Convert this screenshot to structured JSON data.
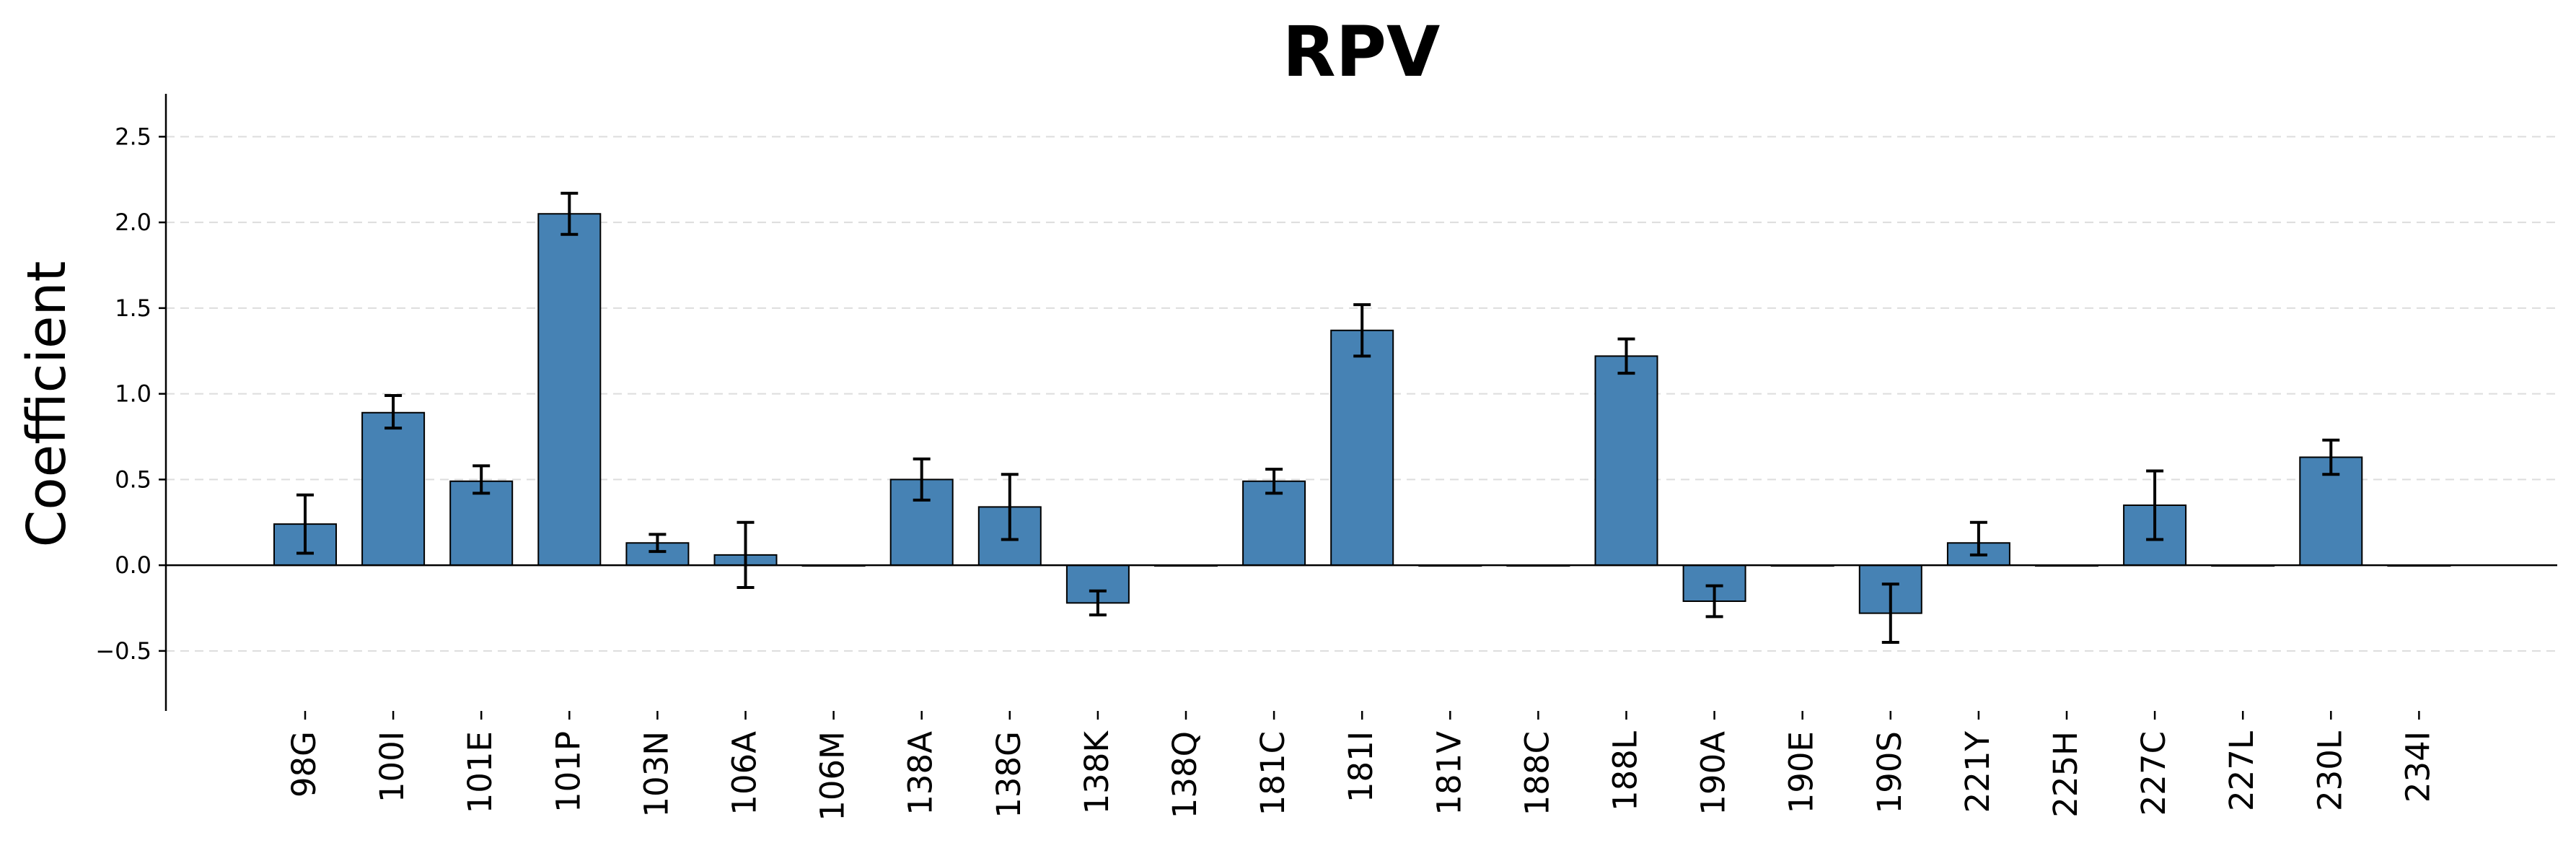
{
  "chart_data": {
    "type": "bar",
    "title": "RPV",
    "xlabel": "",
    "ylabel": "Coefficient",
    "ylim": [
      -0.85,
      2.75
    ],
    "yticks": [
      -0.5,
      0.0,
      0.5,
      1.0,
      1.5,
      2.0,
      2.5
    ],
    "ytick_labels": [
      "−0.5",
      "0.0",
      "0.5",
      "1.0",
      "1.5",
      "2.0",
      "2.5"
    ],
    "grid": true,
    "bar_color": "#4682b4",
    "categories": [
      "98G",
      "100I",
      "101E",
      "101P",
      "103N",
      "106A",
      "106M",
      "138A",
      "138G",
      "138K",
      "138Q",
      "181C",
      "181I",
      "181V",
      "188C",
      "188L",
      "190A",
      "190E",
      "190S",
      "221Y",
      "225H",
      "227C",
      "227L",
      "230L",
      "234I"
    ],
    "values": [
      0.24,
      0.89,
      0.49,
      2.05,
      0.13,
      0.06,
      0.0,
      0.5,
      0.34,
      -0.22,
      0.0,
      0.49,
      1.37,
      0.0,
      0.0,
      1.22,
      -0.21,
      0.0,
      -0.28,
      0.13,
      0.0,
      0.35,
      0.0,
      0.63,
      0.0
    ],
    "error_low": [
      0.07,
      0.8,
      0.42,
      1.93,
      0.08,
      -0.13,
      0.0,
      0.38,
      0.15,
      -0.29,
      0.0,
      0.42,
      1.22,
      0.0,
      0.0,
      1.12,
      -0.3,
      0.0,
      -0.45,
      0.06,
      0.0,
      0.15,
      0.0,
      0.53,
      0.0
    ],
    "error_high": [
      0.41,
      0.99,
      0.58,
      2.17,
      0.18,
      0.25,
      0.0,
      0.62,
      0.53,
      -0.15,
      0.0,
      0.56,
      1.52,
      0.0,
      0.0,
      1.32,
      -0.12,
      0.0,
      -0.11,
      0.25,
      0.0,
      0.55,
      0.0,
      0.73,
      0.0
    ]
  }
}
